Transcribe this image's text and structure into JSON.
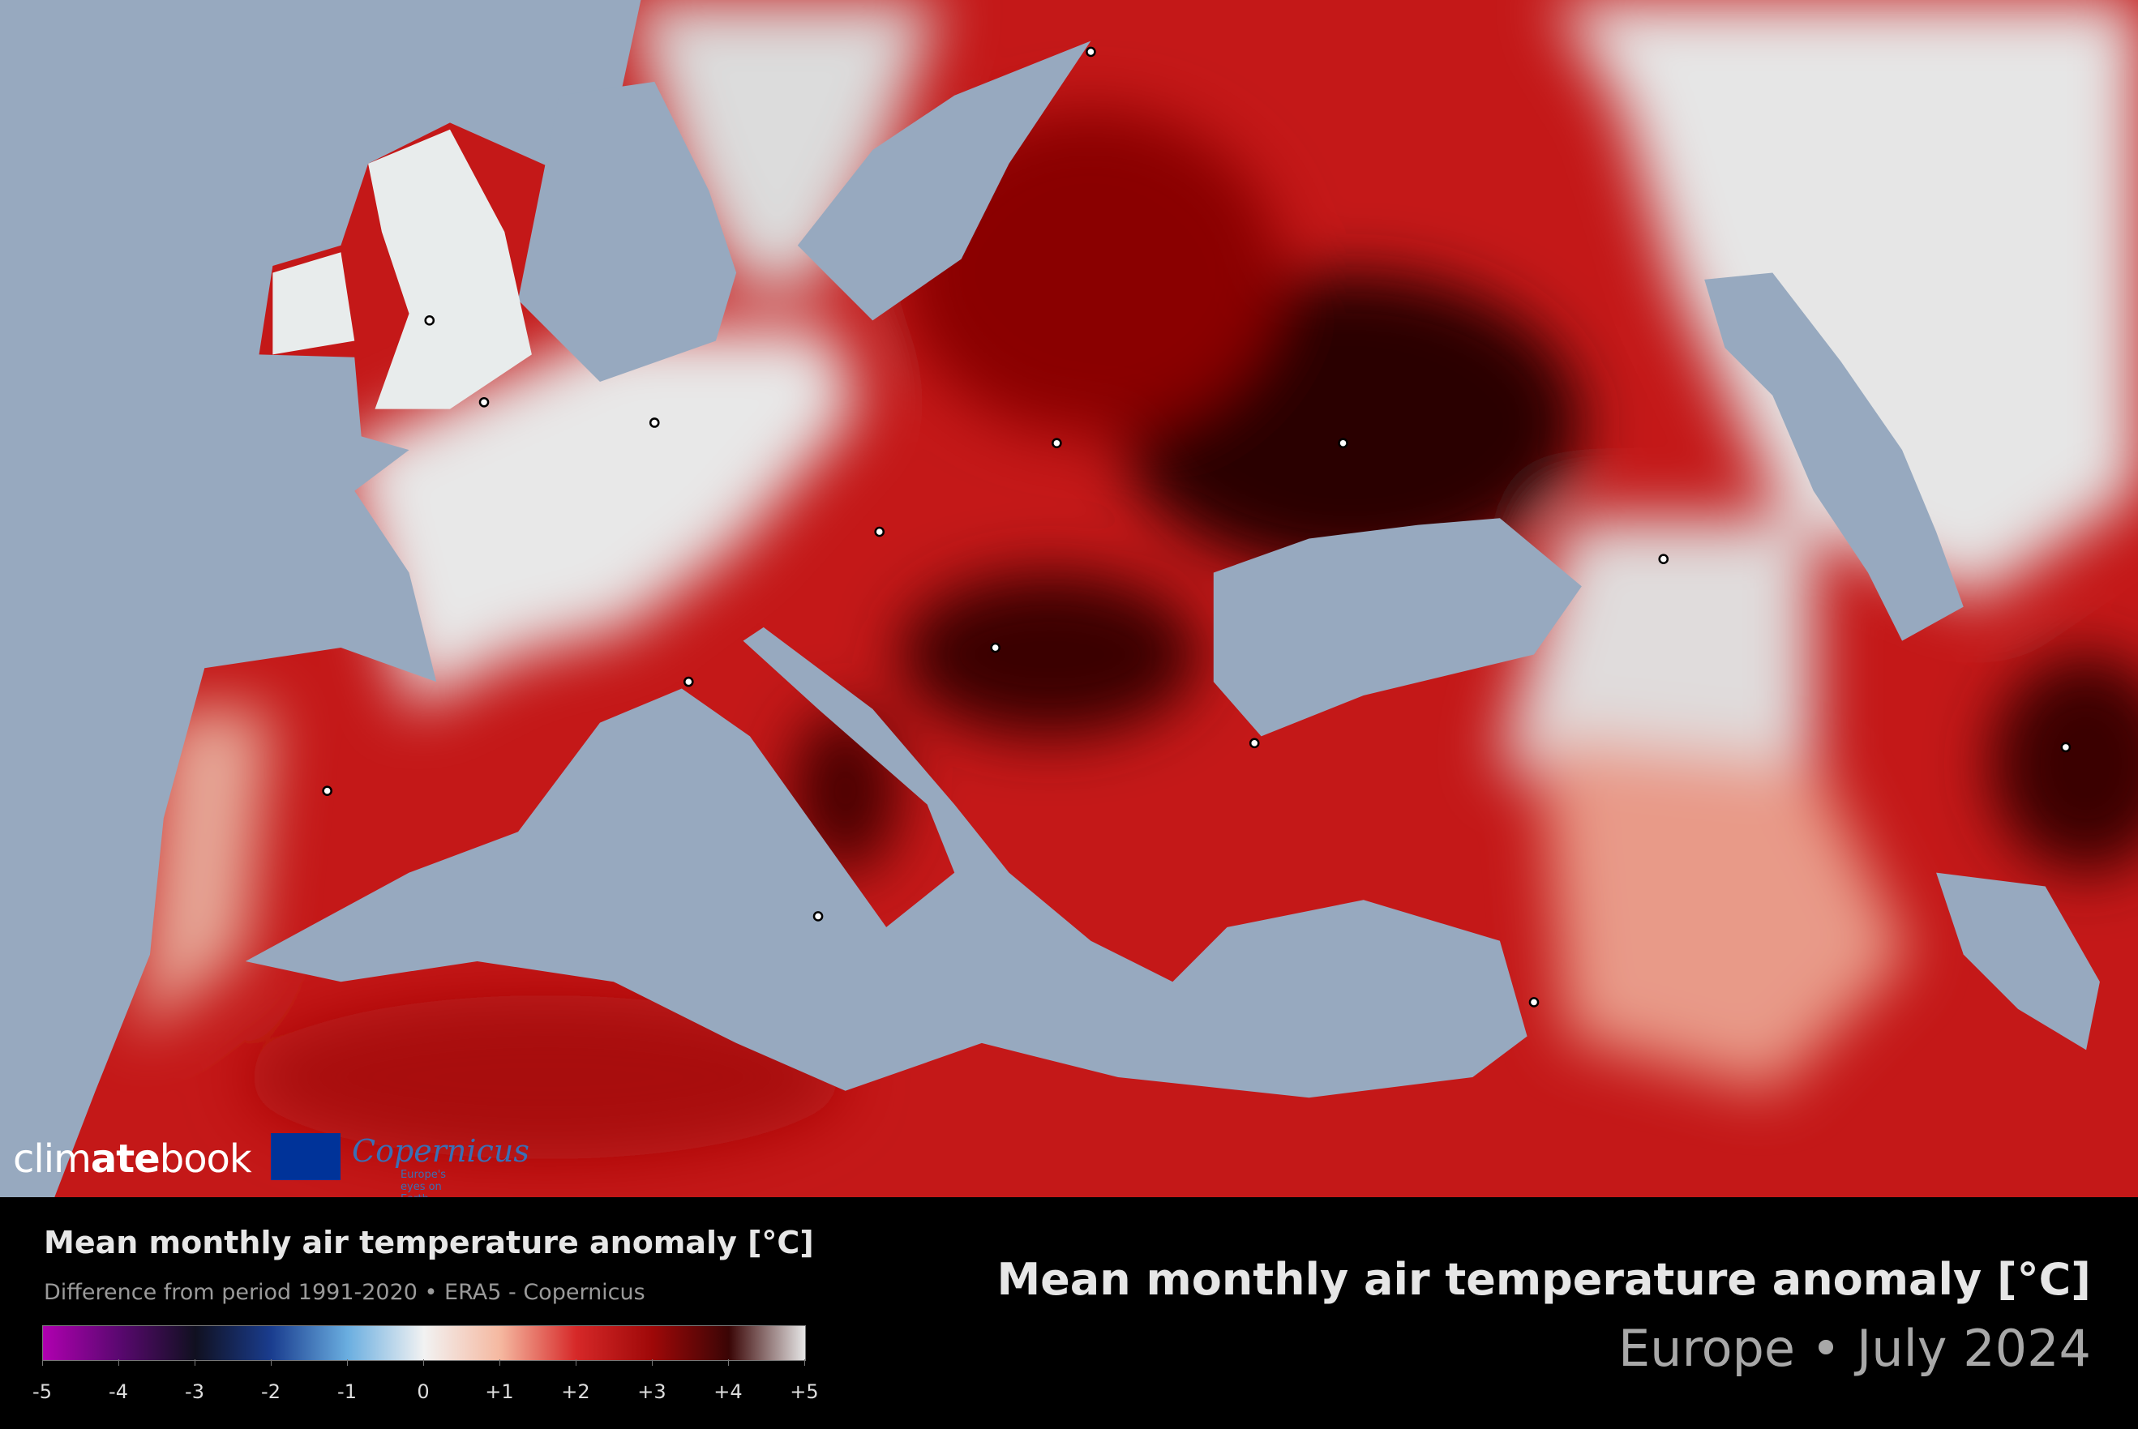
{
  "logo": {
    "brand_parts": [
      "clim",
      "ate",
      "book"
    ],
    "partner": "Copernicus",
    "partner_tagline": "Europe's eyes on Earth"
  },
  "legend": {
    "title": "Mean monthly air temperature anomaly [°C]",
    "subtitle": "Difference from period 1991-2020 • ERA5 - Copernicus",
    "range": [
      -5,
      5
    ],
    "ticks": [
      -5,
      -4,
      -3,
      -2,
      -1,
      0,
      {
        "value": 1,
        "label": "+1"
      },
      {
        "value": 2,
        "label": "+2"
      },
      {
        "value": 3,
        "label": "+3"
      },
      {
        "value": 4,
        "label": "+4"
      },
      {
        "value": 5,
        "label": "+5"
      }
    ]
  },
  "header": {
    "title": "Mean monthly air temperature anomaly [°C]",
    "subtitle": "Europe • July 2024"
  }
}
